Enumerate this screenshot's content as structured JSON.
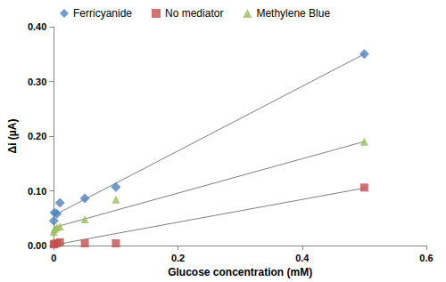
{
  "chart_data": {
    "type": "scatter",
    "x_label": "Glucose concentration (mM)",
    "y_label": "Δi (µA)",
    "xlim": [
      0,
      0.6
    ],
    "xticks": [
      0,
      0.2,
      0.4,
      0.6
    ],
    "ylim": [
      0,
      0.4
    ],
    "yticks": [
      {
        "value": 0,
        "label": "0.00"
      },
      {
        "value": 0.1,
        "label": "0.10"
      },
      {
        "value": 0.2,
        "label": "0.20"
      },
      {
        "value": 0.3,
        "label": "0.30"
      },
      {
        "value": 0.4,
        "label": "0.40"
      }
    ],
    "grid": false,
    "legend": "top",
    "series": [
      {
        "name": "Ferricyanide",
        "color": "#4f81bd",
        "marker": "diamond",
        "x": [
          0,
          0.001,
          0.005,
          0.01,
          0.05,
          0.1,
          0.5
        ],
        "values": [
          0.045,
          0.06,
          0.058,
          0.078,
          0.086,
          0.107,
          0.35
        ],
        "trendline": {
          "x": [
            0,
            0.5
          ],
          "values": [
            0.055,
            0.35
          ]
        }
      },
      {
        "name": "No mediator",
        "color": "#c0504d",
        "marker": "square",
        "x": [
          0,
          0.001,
          0.005,
          0.01,
          0.05,
          0.1,
          0.5
        ],
        "values": [
          0.002,
          0.003,
          0.004,
          0.006,
          0.004,
          0.004,
          0.106
        ],
        "trendline": {
          "x": [
            0,
            0.5
          ],
          "values": [
            0.001,
            0.105
          ]
        }
      },
      {
        "name": "Methylene Blue",
        "color": "#9bbb59",
        "marker": "triangle",
        "x": [
          0,
          0.001,
          0.005,
          0.01,
          0.05,
          0.1,
          0.5
        ],
        "values": [
          0.025,
          0.03,
          0.033,
          0.035,
          0.048,
          0.084,
          0.19
        ],
        "trendline": {
          "x": [
            0,
            0.5
          ],
          "values": [
            0.033,
            0.19
          ]
        }
      }
    ]
  }
}
